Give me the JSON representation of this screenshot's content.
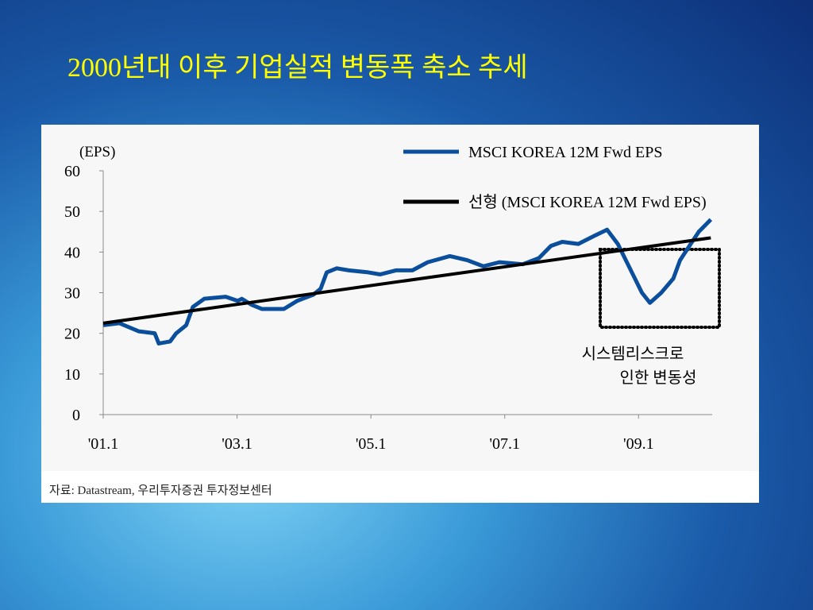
{
  "title": "2000년대 이후 기업실적 변동폭 축소 추세",
  "source": "자료: Datastream, 우리투자증권 투자정보센터",
  "chart_data": {
    "type": "line",
    "y_axis_label": "(EPS)",
    "annotations": [
      "시스템리스크로",
      "인한 변동성"
    ],
    "xlim": [
      2001,
      2010.1
    ],
    "xticks": [
      {
        "value": 2001,
        "label": "'01.1"
      },
      {
        "value": 2003,
        "label": "'03.1"
      },
      {
        "value": 2005,
        "label": "'05.1"
      },
      {
        "value": 2007,
        "label": "'07.1"
      },
      {
        "value": 2009,
        "label": "'09.1"
      }
    ],
    "ylim": [
      0,
      60
    ],
    "yticks": [
      0,
      10,
      20,
      30,
      40,
      50,
      60
    ],
    "series": [
      {
        "name": "MSCI KOREA 12M Fwd EPS",
        "color": "#0b4f9c",
        "x": [
          2001.0,
          2001.24,
          2001.53,
          2001.77,
          2001.83,
          2002.0,
          2002.09,
          2002.24,
          2002.34,
          2002.51,
          2002.83,
          2003.01,
          2003.07,
          2003.22,
          2003.37,
          2003.7,
          2003.9,
          2004.14,
          2004.25,
          2004.34,
          2004.49,
          2004.67,
          2004.96,
          2005.14,
          2005.38,
          2005.62,
          2005.85,
          2006.18,
          2006.44,
          2006.68,
          2006.92,
          2007.27,
          2007.51,
          2007.69,
          2007.86,
          2008.1,
          2008.34,
          2008.53,
          2008.69,
          2008.87,
          2009.05,
          2009.17,
          2009.34,
          2009.52,
          2009.62,
          2009.76,
          2009.9,
          2010.08
        ],
        "values": [
          22,
          22.5,
          20.5,
          20,
          17.5,
          18,
          20,
          22,
          26.5,
          28.5,
          29,
          28,
          28.5,
          27,
          26,
          26,
          28,
          29.5,
          31,
          35,
          36,
          35.5,
          35,
          34.5,
          35.5,
          35.5,
          37.5,
          39,
          38,
          36.5,
          37.5,
          37,
          38.5,
          41.5,
          42.5,
          42,
          44,
          45.5,
          42,
          36,
          30,
          27.5,
          30,
          33.5,
          38,
          41.5,
          45,
          48
        ]
      },
      {
        "name": "선형 (MSCI KOREA 12M Fwd EPS)",
        "color": "#000000",
        "x": [
          2001.0,
          2010.08
        ],
        "values": [
          22.5,
          43.5
        ]
      }
    ]
  }
}
